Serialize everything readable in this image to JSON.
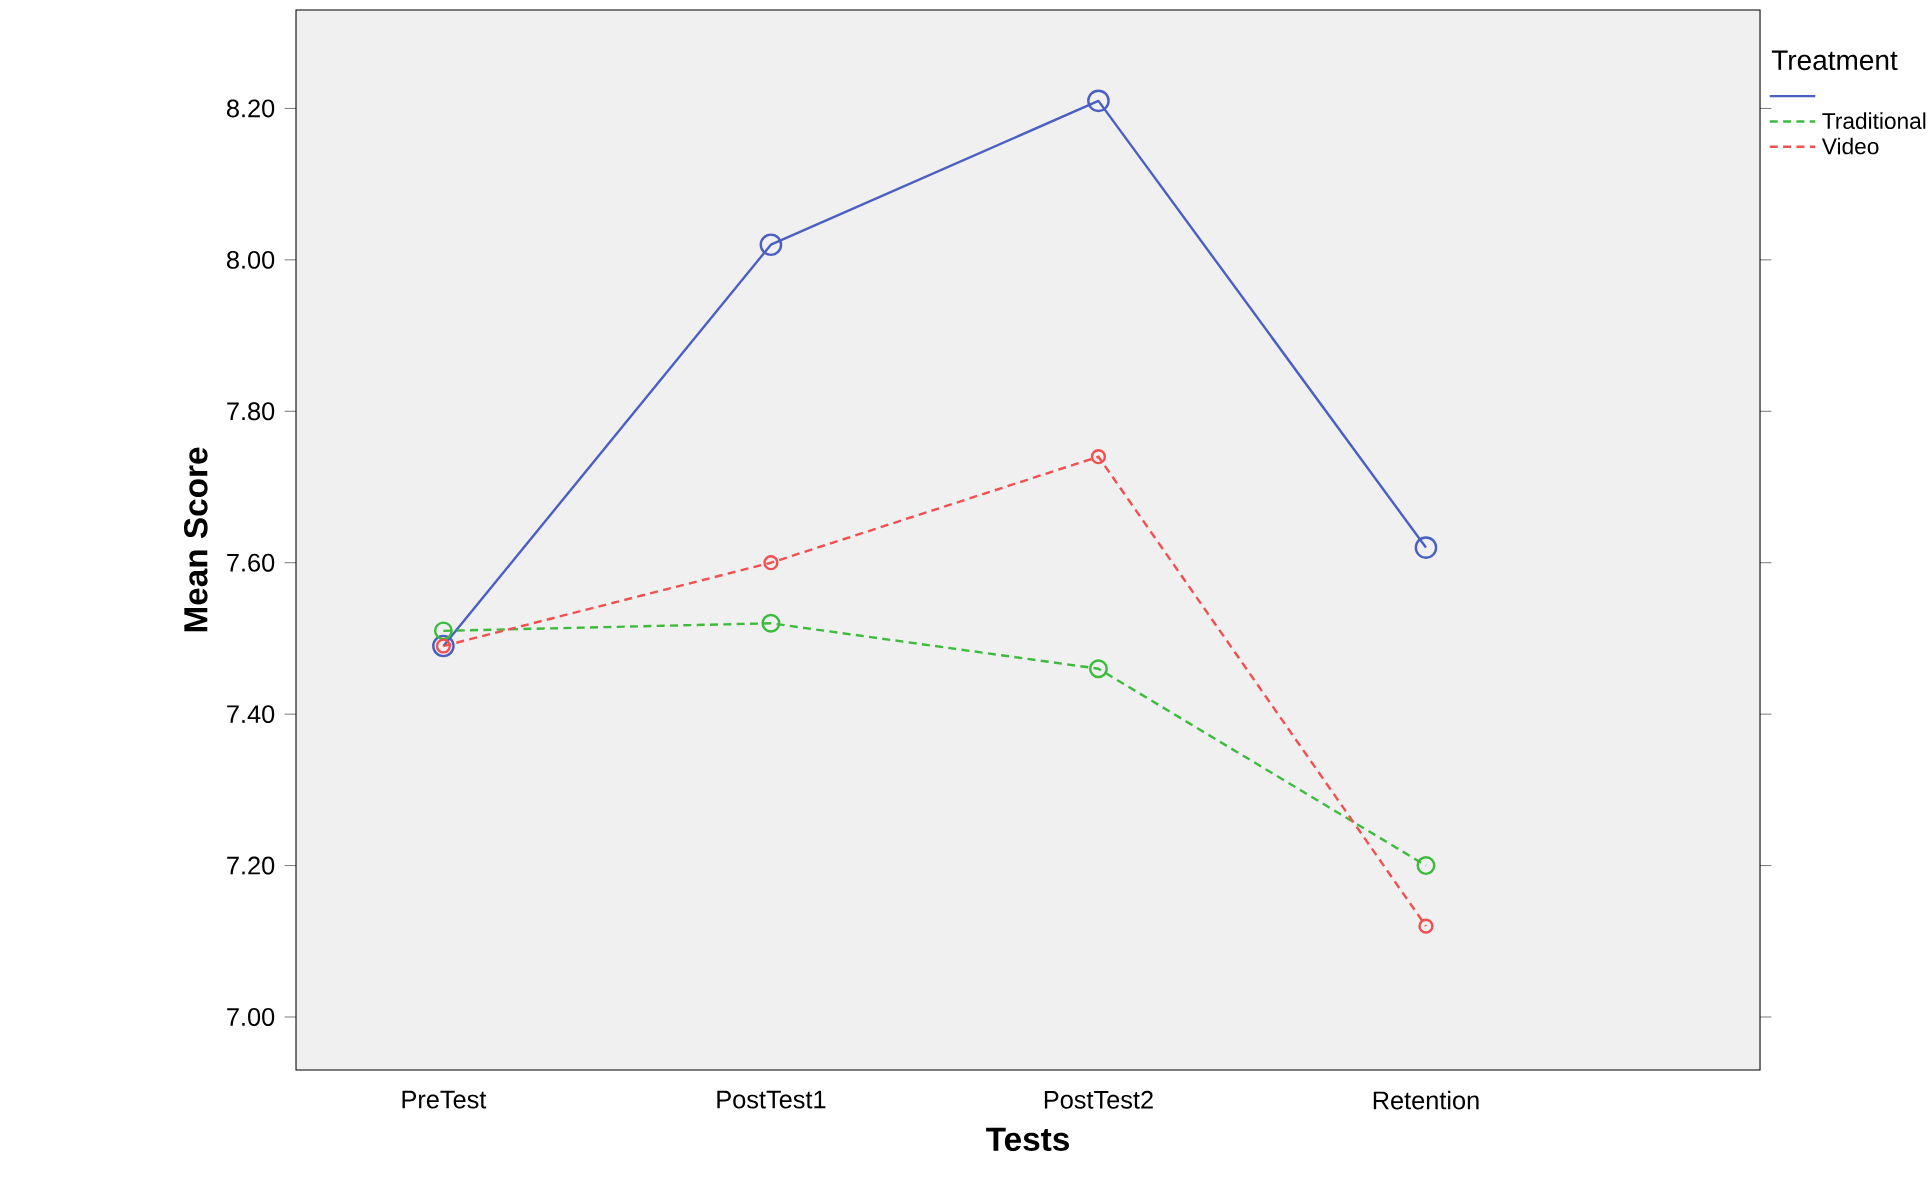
{
  "chart_data": {
    "type": "line",
    "xlabel": "Tests",
    "ylabel": "Mean Score",
    "legend_title": "Treatment",
    "legend": "top right",
    "marker": "circle",
    "grid": false,
    "categories": [
      "PreTest",
      "PostTest1",
      "PostTest2",
      "Retention"
    ],
    "ylim": [
      6.93,
      8.33
    ],
    "yticks": [
      {
        "value": 7.0,
        "label": "7.00"
      },
      {
        "value": 7.2,
        "label": "7.20"
      },
      {
        "value": 7.4,
        "label": "7.40"
      },
      {
        "value": 7.6,
        "label": "7.60"
      },
      {
        "value": 7.8,
        "label": "7.80"
      },
      {
        "value": 8.0,
        "label": "8.00"
      },
      {
        "value": 8.2,
        "label": "8.20"
      }
    ],
    "series": [
      {
        "color": "#4a5fc1",
        "line_style": "solid",
        "values": [
          7.49,
          8.02,
          8.21,
          7.62
        ]
      },
      {
        "name": "Traditional",
        "color": "#3dbb3d",
        "line_style": "dashed",
        "values": [
          7.51,
          7.52,
          7.46,
          7.2
        ]
      },
      {
        "name": "Video",
        "color": "#f05050",
        "line_style": "dashed",
        "values": [
          7.49,
          7.6,
          7.74,
          7.12
        ]
      }
    ]
  }
}
